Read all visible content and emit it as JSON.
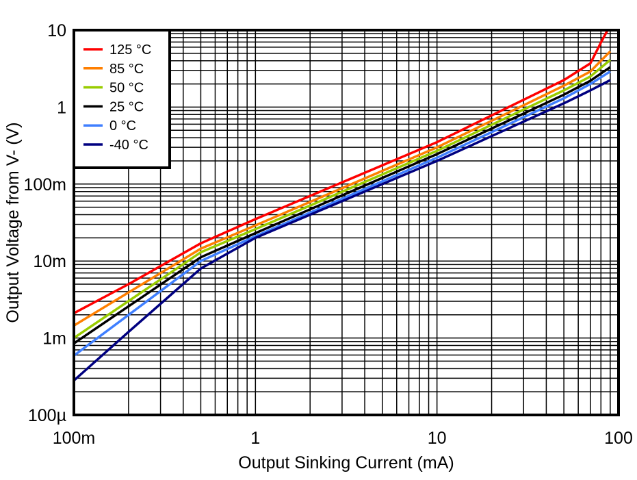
{
  "chart_data": {
    "type": "line",
    "xlabel": "Output Sinking Current (mA)",
    "ylabel": "Output Voltage from V- (V)",
    "x_scale": "log",
    "y_scale": "log",
    "xlim": [
      0.1,
      100
    ],
    "ylim": [
      0.0001,
      10
    ],
    "grid": true,
    "legend_position": "top-left",
    "x_ticks": [
      {
        "value": 0.1,
        "label": "100m"
      },
      {
        "value": 1,
        "label": "1"
      },
      {
        "value": 10,
        "label": "10"
      },
      {
        "value": 100,
        "label": "100"
      }
    ],
    "y_ticks": [
      {
        "value": 0.0001,
        "label": "100µ"
      },
      {
        "value": 0.001,
        "label": "1m"
      },
      {
        "value": 0.01,
        "label": "10m"
      },
      {
        "value": 0.1,
        "label": "100m"
      },
      {
        "value": 1,
        "label": "1"
      },
      {
        "value": 10,
        "label": "10"
      }
    ],
    "series": [
      {
        "name": "125 °C",
        "color": "#FF0000",
        "x": [
          0.1,
          0.2,
          0.5,
          1,
          10,
          50,
          70,
          80,
          87
        ],
        "y": [
          0.0021,
          0.005,
          0.017,
          0.035,
          0.35,
          2.24,
          3.7,
          6.9,
          10
        ]
      },
      {
        "name": "85 °C",
        "color": "#FF7F00",
        "x": [
          0.1,
          0.5,
          1,
          10,
          50,
          70,
          90
        ],
        "y": [
          0.00145,
          0.0145,
          0.029,
          0.3,
          1.9,
          2.9,
          5.3
        ]
      },
      {
        "name": "50 °C",
        "color": "#99CC00",
        "x": [
          0.1,
          0.5,
          1,
          10,
          50,
          70,
          90
        ],
        "y": [
          0.001,
          0.013,
          0.026,
          0.27,
          1.65,
          2.5,
          4.1
        ]
      },
      {
        "name": "25 °C",
        "color": "#000000",
        "x": [
          0.1,
          0.5,
          1,
          10,
          50,
          70,
          90
        ],
        "y": [
          0.00085,
          0.0112,
          0.023,
          0.245,
          1.45,
          2.2,
          3.3
        ]
      },
      {
        "name": "0 °C",
        "color": "#3F7FFF",
        "x": [
          0.1,
          0.5,
          1,
          10,
          50,
          70,
          90
        ],
        "y": [
          0.00059,
          0.01,
          0.021,
          0.22,
          1.3,
          2.0,
          2.9
        ]
      },
      {
        "name": "-40 °C",
        "color": "#000080",
        "x": [
          0.1,
          0.2,
          0.5,
          1,
          10,
          50,
          70,
          90
        ],
        "y": [
          0.00028,
          0.0012,
          0.008,
          0.02,
          0.2,
          1.12,
          1.65,
          2.24
        ]
      }
    ]
  }
}
